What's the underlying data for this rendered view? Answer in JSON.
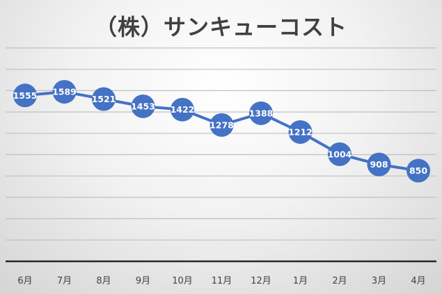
{
  "chart_data": {
    "type": "line",
    "title": "（株）サンキューコスト",
    "xlabel": "",
    "ylabel": "",
    "categories": [
      "6月",
      "7月",
      "8月",
      "9月",
      "10月",
      "11月",
      "12月",
      "1月",
      "2月",
      "3月",
      "4月"
    ],
    "series": [
      {
        "values": [
          1555,
          1589,
          1521,
          1453,
          1422,
          1278,
          1388,
          1212,
          1004,
          908,
          850
        ]
      }
    ],
    "ylim": [
      0,
      2000
    ],
    "grid": true,
    "legend": "none",
    "data_labels": true,
    "colors": {
      "series": "#4472c4",
      "grid": "#bfbfbf",
      "baseline": "#262626",
      "title": "#404040",
      "label_text": "#ffffff"
    }
  }
}
